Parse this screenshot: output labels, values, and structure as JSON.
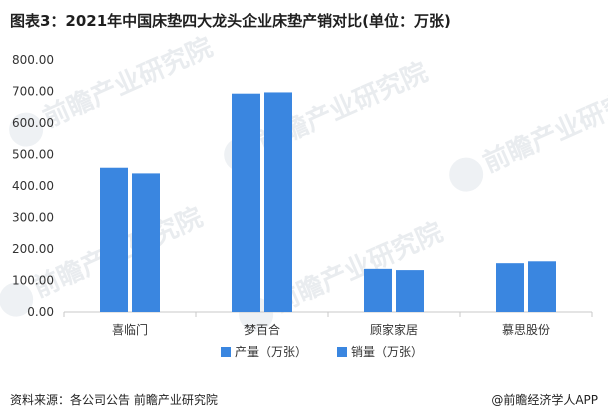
{
  "title": "图表3：2021年中国床垫四大龙头企业床垫产销对比(单位：万张)",
  "source": "资料来源：各公司公告 前瞻产业研究院",
  "brand": "@前瞻经济学人APP",
  "watermark": "前瞻产业研究院",
  "colors": {
    "series_1": "#3a86e0",
    "series_2": "#3a86e0",
    "axis": "#c8c8c8",
    "text": "#333333"
  },
  "chart_data": {
    "type": "bar",
    "categories": [
      "喜临门",
      "梦百合",
      "顾家家居",
      "慕思股份"
    ],
    "series": [
      {
        "name": "产量（万张）",
        "values": [
          458,
          693,
          137,
          155
        ]
      },
      {
        "name": "销量（万张）",
        "values": [
          440,
          697,
          133,
          161
        ]
      }
    ],
    "ylim": [
      0,
      800
    ],
    "yticks": [
      "0.00",
      "100.00",
      "200.00",
      "300.00",
      "400.00",
      "500.00",
      "600.00",
      "700.00",
      "800.00"
    ],
    "grid": false,
    "legend_position": "bottom"
  }
}
